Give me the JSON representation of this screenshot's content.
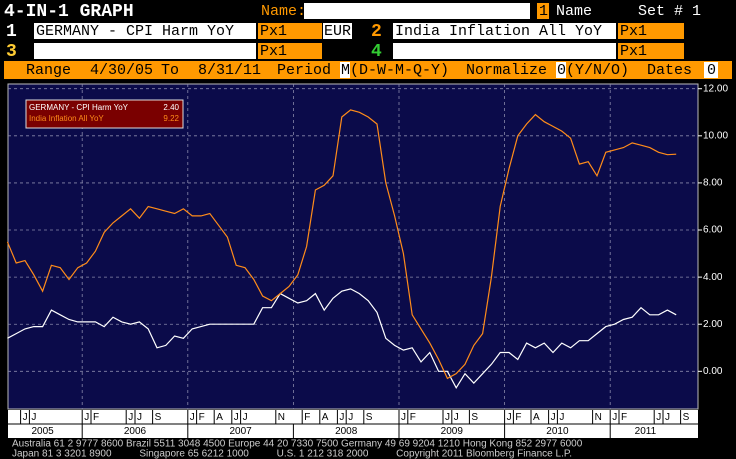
{
  "header": {
    "title": "4-IN-1 GRAPH",
    "name_label": "Name:",
    "slot": "1",
    "slot_name": "Name",
    "set": "Set # 1"
  },
  "securities": [
    {
      "number": "1",
      "name": "GERMANY - CPI  Harm YoY",
      "field": "Px1",
      "currency": "EUR"
    },
    {
      "number": "2",
      "name": "India Inflation All YoY",
      "field": "Px1"
    },
    {
      "number": "3",
      "field": "Px1"
    },
    {
      "number": "4",
      "field": "Px1"
    }
  ],
  "options": {
    "range_label": "Range",
    "start": "4/30/05",
    "to_label": "To",
    "end": "8/31/11",
    "period_label": "Period",
    "period": "M",
    "period_options": "(D-W-M-Q-Y)",
    "normalize_label": "Normalize",
    "normalize": "0",
    "normalize_options": "(Y/N/O)",
    "dates_label": "Dates",
    "dates": "0"
  },
  "footer": [
    "Australia 61 2 9777 8600 Brazil 5511 3048 4500 Europe 44 20 7330 7500 Germany 49 69 9204 1210 Hong Kong 852 2977 6000",
    "Japan 81 3 3201 8900          Singapore 65 6212 1000          U.S. 1 212 318 2000          Copyright 2011 Bloomberg Finance L.P."
  ],
  "chart_data": {
    "type": "line",
    "categories": [
      "2005-04",
      "2005-05",
      "2005-06",
      "2005-07",
      "2005-08",
      "2005-09",
      "2005-10",
      "2005-11",
      "2005-12",
      "2006-01",
      "2006-02",
      "2006-03",
      "2006-04",
      "2006-05",
      "2006-06",
      "2006-07",
      "2006-08",
      "2006-09",
      "2006-10",
      "2006-11",
      "2006-12",
      "2007-01",
      "2007-02",
      "2007-03",
      "2007-04",
      "2007-05",
      "2007-06",
      "2007-07",
      "2007-08",
      "2007-09",
      "2007-10",
      "2007-11",
      "2007-12",
      "2008-01",
      "2008-02",
      "2008-03",
      "2008-04",
      "2008-05",
      "2008-06",
      "2008-07",
      "2008-08",
      "2008-09",
      "2008-10",
      "2008-11",
      "2008-12",
      "2009-01",
      "2009-02",
      "2009-03",
      "2009-04",
      "2009-05",
      "2009-06",
      "2009-07",
      "2009-08",
      "2009-09",
      "2009-10",
      "2009-11",
      "2009-12",
      "2010-01",
      "2010-02",
      "2010-03",
      "2010-04",
      "2010-05",
      "2010-06",
      "2010-07",
      "2010-08",
      "2010-09",
      "2010-10",
      "2010-11",
      "2010-12",
      "2011-01",
      "2011-02",
      "2011-03",
      "2011-04",
      "2011-05",
      "2011-06",
      "2011-07",
      "2011-08"
    ],
    "series": [
      {
        "name": "GERMANY - CPI  Harm YoY",
        "color": "#ffffff",
        "last_label": "2.40",
        "values": [
          1.4,
          1.6,
          1.8,
          1.9,
          1.9,
          2.6,
          2.4,
          2.2,
          2.1,
          2.1,
          2.1,
          1.9,
          2.3,
          2.1,
          2.0,
          2.1,
          1.8,
          1.0,
          1.1,
          1.5,
          1.4,
          1.8,
          1.9,
          2.0,
          2.0,
          2.0,
          2.0,
          2.0,
          2.0,
          2.7,
          2.7,
          3.3,
          3.1,
          2.9,
          3.0,
          3.3,
          2.6,
          3.1,
          3.4,
          3.5,
          3.3,
          3.0,
          2.5,
          1.4,
          1.1,
          0.9,
          1.0,
          0.4,
          0.8,
          0.0,
          0.0,
          -0.7,
          -0.1,
          -0.5,
          -0.1,
          0.3,
          0.8,
          0.8,
          0.5,
          1.2,
          1.0,
          1.2,
          0.8,
          1.2,
          1.0,
          1.3,
          1.3,
          1.6,
          1.9,
          2.0,
          2.2,
          2.3,
          2.7,
          2.4,
          2.4,
          2.6,
          2.4
        ]
      },
      {
        "name": "India Inflation All YoY",
        "color": "#ff8c1a",
        "last_label": "9.22",
        "values": [
          5.5,
          4.6,
          4.7,
          4.1,
          3.4,
          4.5,
          4.4,
          3.9,
          4.4,
          4.6,
          5.1,
          5.9,
          6.3,
          6.6,
          6.9,
          6.5,
          7.0,
          6.9,
          6.8,
          6.7,
          6.9,
          6.6,
          6.6,
          6.7,
          6.2,
          5.7,
          4.5,
          4.4,
          3.9,
          3.2,
          3.0,
          3.3,
          3.6,
          4.1,
          5.3,
          7.7,
          7.9,
          8.3,
          10.8,
          11.1,
          11.0,
          10.8,
          10.5,
          8.0,
          6.6,
          5.0,
          2.4,
          1.8,
          1.2,
          0.5,
          -0.3,
          -0.1,
          0.3,
          1.1,
          1.6,
          4.0,
          7.0,
          8.6,
          10.0,
          10.5,
          10.9,
          10.6,
          10.4,
          10.2,
          9.9,
          8.8,
          8.9,
          8.3,
          9.3,
          9.4,
          9.5,
          9.7,
          9.6,
          9.5,
          9.3,
          9.2,
          9.22
        ]
      }
    ],
    "ylim": [
      -1.6,
      12.2
    ],
    "yticks": [
      {
        "value": 12,
        "label": "12.00"
      },
      {
        "value": 10,
        "label": "10.00"
      },
      {
        "value": 8,
        "label": "8.00"
      },
      {
        "value": 6,
        "label": "6.00"
      },
      {
        "value": 4,
        "label": "4.00"
      },
      {
        "value": 2,
        "label": "2.00"
      },
      {
        "value": 0,
        "label": "0.00"
      }
    ],
    "xticks": [
      {
        "value": 2,
        "label": "J"
      },
      {
        "value": 3,
        "label": "J"
      },
      {
        "value": 9,
        "label": "J"
      },
      {
        "value": 10,
        "label": "F"
      },
      {
        "value": 14,
        "label": "J"
      },
      {
        "value": 15,
        "label": "J"
      },
      {
        "value": 17,
        "label": "S"
      },
      {
        "value": 21,
        "label": "J"
      },
      {
        "value": 22,
        "label": "F"
      },
      {
        "value": 24,
        "label": "A"
      },
      {
        "value": 26,
        "label": "J"
      },
      {
        "value": 27,
        "label": "J"
      },
      {
        "value": 31,
        "label": "N"
      },
      {
        "value": 34,
        "label": "F"
      },
      {
        "value": 36,
        "label": "A"
      },
      {
        "value": 38,
        "label": "J"
      },
      {
        "value": 39,
        "label": "J"
      },
      {
        "value": 41,
        "label": "S"
      },
      {
        "value": 45,
        "label": "J"
      },
      {
        "value": 46,
        "label": "F"
      },
      {
        "value": 50,
        "label": "J"
      },
      {
        "value": 51,
        "label": "J"
      },
      {
        "value": 53,
        "label": "S"
      },
      {
        "value": 57,
        "label": "J"
      },
      {
        "value": 58,
        "label": "F"
      },
      {
        "value": 60,
        "label": "A"
      },
      {
        "value": 62,
        "label": "J"
      },
      {
        "value": 63,
        "label": "J"
      },
      {
        "value": 67,
        "label": "N"
      },
      {
        "value": 69,
        "label": "J"
      },
      {
        "value": 70,
        "label": "F"
      },
      {
        "value": 74,
        "label": "J"
      },
      {
        "value": 75,
        "label": "J"
      },
      {
        "value": 77,
        "label": "S"
      }
    ],
    "year_labels": [
      "2005",
      "2006",
      "2007",
      "2008",
      "2009",
      "2010",
      "2011"
    ],
    "grid": true
  }
}
